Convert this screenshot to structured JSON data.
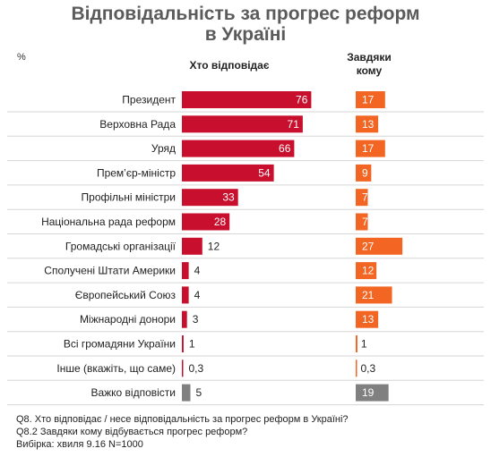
{
  "chart_data": {
    "type": "bar",
    "title": "Відповідальність за прогрес реформ в Україні",
    "unit_label": "%",
    "series": [
      {
        "name": "Хто відповідає",
        "color": "#c8102e",
        "values": [
          76,
          71,
          66,
          54,
          33,
          28,
          12,
          4,
          4,
          3,
          1,
          0.3,
          5
        ],
        "labels": [
          "76",
          "71",
          "66",
          "54",
          "33",
          "28",
          "12",
          "4",
          "4",
          "3",
          "1",
          "0,3",
          "5"
        ]
      },
      {
        "name": "Завдяки кому",
        "color": "#f26522",
        "values": [
          17,
          13,
          17,
          9,
          7,
          7,
          27,
          12,
          21,
          13,
          1,
          0.3,
          19
        ],
        "labels": [
          "17",
          "13",
          "17",
          "9",
          "7",
          "7",
          "27",
          "12",
          "21",
          "13",
          "1",
          "0,3",
          "19"
        ]
      }
    ],
    "categories": [
      "Президент",
      "Верховна Рада",
      "Уряд",
      "Прем’єр-міністр",
      "Профільні міністри",
      "Національна рада реформ",
      "Громадські організації",
      "Сполучені Штати Америки",
      "Європейський Союз",
      "Міжнародні донори",
      "Всі громадяни України",
      "Інше (вкажіть, що саме)",
      "Важко відповісти"
    ],
    "special_category_color": "#808080",
    "special_category_index": 12
  },
  "header": {
    "title_line1": "Відповідальність за прогрес реформ",
    "title_line2": "в Україні",
    "percent": "%",
    "col1": "Хто відповідає",
    "col2_line1": "Завдяки",
    "col2_line2": "кому"
  },
  "notes": {
    "q1": "Q8. Хто відповідає / несе відповідальність за прогрес реформ в Україні?",
    "q2": "Q8.2 Завдяки кому відбувається прогрес реформ?",
    "sample": "Вибірка: хвиля 9.16 N=1000"
  }
}
